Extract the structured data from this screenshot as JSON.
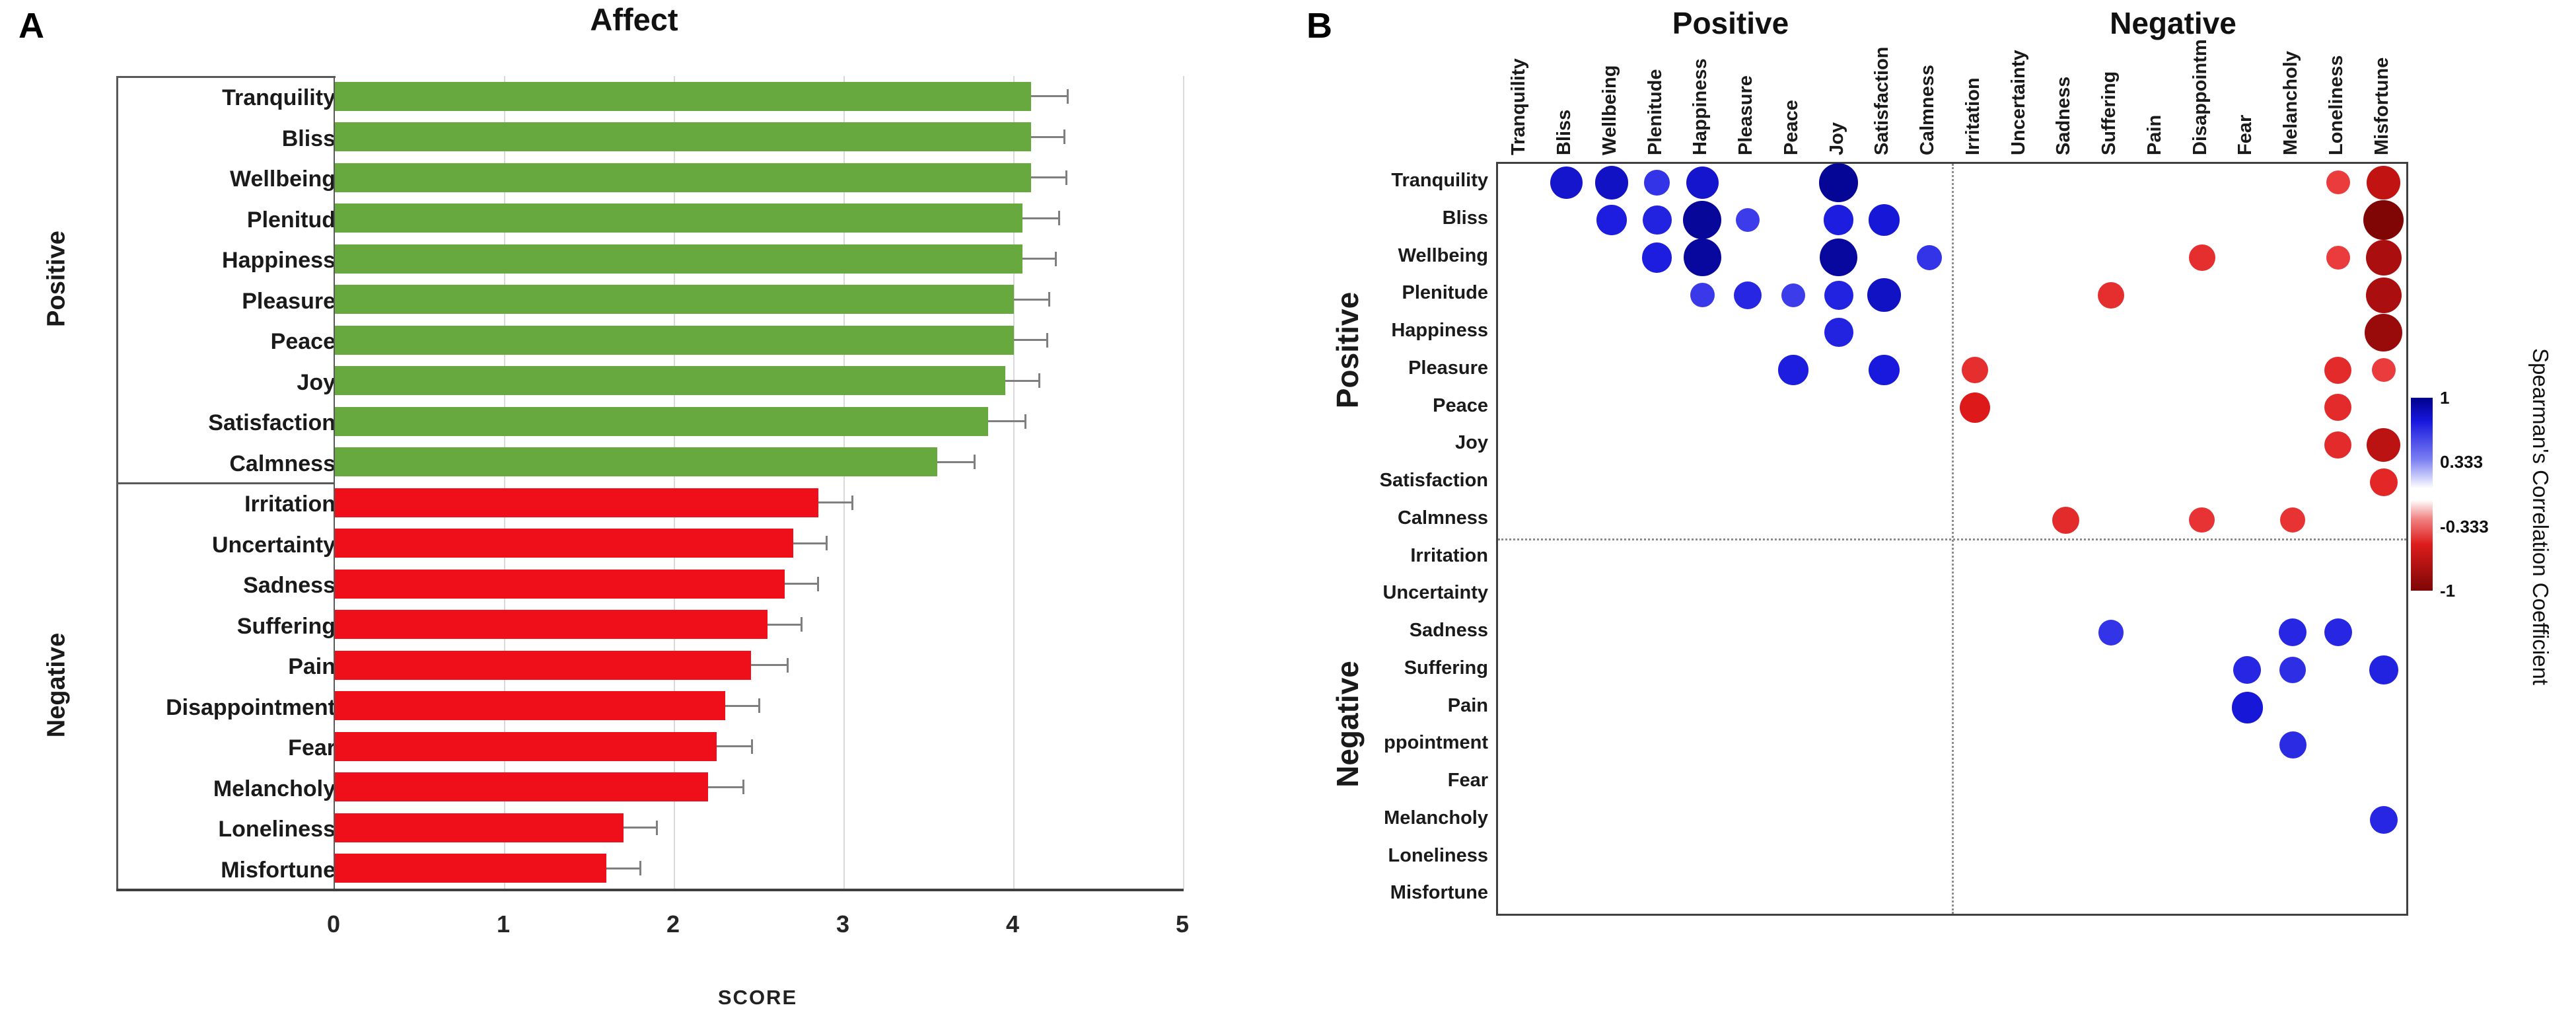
{
  "figure": {
    "panel_a_letter": "A",
    "panel_b_letter": "B"
  },
  "colors": {
    "positive_bar": "#67a93f",
    "negative_bar": "#ee0f1a",
    "error_bar": "#7f7f7f",
    "dot_blue_bright": "#1717dd",
    "dot_blue_dark": "#00008b",
    "dot_red_bright": "#dd1c1c",
    "dot_red_dark": "#7d0606"
  },
  "chart_data": [
    {
      "id": "affect_scores",
      "type": "bar",
      "orientation": "horizontal",
      "title": "Affect",
      "xlabel": "SCORE",
      "xlim": [
        0,
        5
      ],
      "x_ticks": [
        "0",
        "1",
        "2",
        "3",
        "4",
        "5"
      ],
      "grid": true,
      "groups": [
        {
          "name": "Positive",
          "color": "#67a93f",
          "items": [
            {
              "label": "Tranquility",
              "value": 4.1,
              "error": 0.22
            },
            {
              "label": "Bliss",
              "value": 4.1,
              "error": 0.2
            },
            {
              "label": "Wellbeing",
              "value": 4.1,
              "error": 0.21
            },
            {
              "label": "Plenitud",
              "value": 4.05,
              "error": 0.22
            },
            {
              "label": "Happiness",
              "value": 4.05,
              "error": 0.2
            },
            {
              "label": "Pleasure",
              "value": 4.0,
              "error": 0.21
            },
            {
              "label": "Peace",
              "value": 4.0,
              "error": 0.2
            },
            {
              "label": "Joy",
              "value": 3.95,
              "error": 0.2
            },
            {
              "label": "Satisfaction",
              "value": 3.85,
              "error": 0.22
            },
            {
              "label": "Calmness",
              "value": 3.55,
              "error": 0.22
            }
          ]
        },
        {
          "name": "Negative",
          "color": "#ee0f1a",
          "items": [
            {
              "label": "Irritation",
              "value": 2.85,
              "error": 0.2
            },
            {
              "label": "Uncertainty",
              "value": 2.7,
              "error": 0.2
            },
            {
              "label": "Sadness",
              "value": 2.65,
              "error": 0.2
            },
            {
              "label": "Suffering",
              "value": 2.55,
              "error": 0.2
            },
            {
              "label": "Pain",
              "value": 2.45,
              "error": 0.22
            },
            {
              "label": "Disappointment",
              "value": 2.3,
              "error": 0.2
            },
            {
              "label": "Fear",
              "value": 2.25,
              "error": 0.21
            },
            {
              "label": "Melancholy",
              "value": 2.2,
              "error": 0.21
            },
            {
              "label": "Loneliness",
              "value": 1.7,
              "error": 0.2
            },
            {
              "label": "Misfortune",
              "value": 1.6,
              "error": 0.2
            }
          ]
        }
      ]
    },
    {
      "id": "spearman_matrix",
      "type": "scatter",
      "subtype": "correlation_bubble_matrix",
      "col_header_positive": "Positive",
      "col_header_negative": "Negative",
      "row_group_positive": "Positive",
      "row_group_negative": "Negative",
      "columns": [
        "Tranquility",
        "Bliss",
        "Wellbeing",
        "Plenitude",
        "Happiness",
        "Pleasure",
        "Peace",
        "Joy",
        "Satisfaction",
        "Calmness",
        "Irritation",
        "Uncertainty",
        "Sadness",
        "Suffering",
        "Pain",
        "Disappointm",
        "Fear",
        "Melancholy",
        "Loneliness",
        "Misfortune"
      ],
      "rows": [
        "Tranquility",
        "Bliss",
        "Wellbeing",
        "Plenitude",
        "Happiness",
        "Pleasure",
        "Peace",
        "Joy",
        "Satisfaction",
        "Calmness",
        "Irritation",
        "Uncertainty",
        "Sadness",
        "Suffering",
        "Pain",
        "ppointment",
        "Fear",
        "Melancholy",
        "Loneliness",
        "Misfortune"
      ],
      "points": [
        {
          "ri": 0,
          "ci": 1,
          "r": 0.75
        },
        {
          "ri": 0,
          "ci": 2,
          "r": 0.78
        },
        {
          "ri": 0,
          "ci": 3,
          "r": 0.55
        },
        {
          "ri": 0,
          "ci": 4,
          "r": 0.75
        },
        {
          "ri": 0,
          "ci": 7,
          "r": 0.93
        },
        {
          "ri": 0,
          "ci": 18,
          "r": -0.5
        },
        {
          "ri": 0,
          "ci": 19,
          "r": -0.78
        },
        {
          "ri": 1,
          "ci": 2,
          "r": 0.68
        },
        {
          "ri": 1,
          "ci": 3,
          "r": 0.65
        },
        {
          "ri": 1,
          "ci": 4,
          "r": 0.92
        },
        {
          "ri": 1,
          "ci": 5,
          "r": 0.5
        },
        {
          "ri": 1,
          "ci": 7,
          "r": 0.68
        },
        {
          "ri": 1,
          "ci": 8,
          "r": 0.72
        },
        {
          "ri": 1,
          "ci": 19,
          "r": -0.97
        },
        {
          "ri": 2,
          "ci": 3,
          "r": 0.68
        },
        {
          "ri": 2,
          "ci": 4,
          "r": 0.9
        },
        {
          "ri": 2,
          "ci": 7,
          "r": 0.9
        },
        {
          "ri": 2,
          "ci": 9,
          "r": 0.55
        },
        {
          "ri": 2,
          "ci": 15,
          "r": -0.58
        },
        {
          "ri": 2,
          "ci": 18,
          "r": -0.5
        },
        {
          "ri": 2,
          "ci": 19,
          "r": -0.85
        },
        {
          "ri": 3,
          "ci": 4,
          "r": 0.52
        },
        {
          "ri": 3,
          "ci": 5,
          "r": 0.62
        },
        {
          "ri": 3,
          "ci": 6,
          "r": 0.5
        },
        {
          "ri": 3,
          "ci": 7,
          "r": 0.65
        },
        {
          "ri": 3,
          "ci": 8,
          "r": 0.78
        },
        {
          "ri": 3,
          "ci": 13,
          "r": -0.58
        },
        {
          "ri": 3,
          "ci": 19,
          "r": -0.85
        },
        {
          "ri": 4,
          "ci": 7,
          "r": 0.65
        },
        {
          "ri": 4,
          "ci": 19,
          "r": -0.9
        },
        {
          "ri": 5,
          "ci": 6,
          "r": 0.68
        },
        {
          "ri": 5,
          "ci": 8,
          "r": 0.7
        },
        {
          "ri": 5,
          "ci": 10,
          "r": -0.58
        },
        {
          "ri": 5,
          "ci": 18,
          "r": -0.6
        },
        {
          "ri": 5,
          "ci": 19,
          "r": -0.5
        },
        {
          "ri": 6,
          "ci": 10,
          "r": -0.7
        },
        {
          "ri": 6,
          "ci": 18,
          "r": -0.6
        },
        {
          "ri": 7,
          "ci": 18,
          "r": -0.6
        },
        {
          "ri": 7,
          "ci": 19,
          "r": -0.8
        },
        {
          "ri": 8,
          "ci": 19,
          "r": -0.62
        },
        {
          "ri": 9,
          "ci": 12,
          "r": -0.6
        },
        {
          "ri": 9,
          "ci": 15,
          "r": -0.55
        },
        {
          "ri": 9,
          "ci": 17,
          "r": -0.55
        },
        {
          "ri": 12,
          "ci": 13,
          "r": 0.55
        },
        {
          "ri": 12,
          "ci": 17,
          "r": 0.62
        },
        {
          "ri": 12,
          "ci": 18,
          "r": 0.62
        },
        {
          "ri": 13,
          "ci": 16,
          "r": 0.62
        },
        {
          "ri": 13,
          "ci": 17,
          "r": 0.58
        },
        {
          "ri": 13,
          "ci": 19,
          "r": 0.65
        },
        {
          "ri": 14,
          "ci": 16,
          "r": 0.72
        },
        {
          "ri": 15,
          "ci": 17,
          "r": 0.6
        },
        {
          "ri": 17,
          "ci": 19,
          "r": 0.62
        }
      ],
      "colorbar": {
        "label": "Spearman's Correlation Coefficient",
        "ticks": [
          "1",
          "0.333",
          "-0.333",
          "-1"
        ]
      }
    }
  ]
}
